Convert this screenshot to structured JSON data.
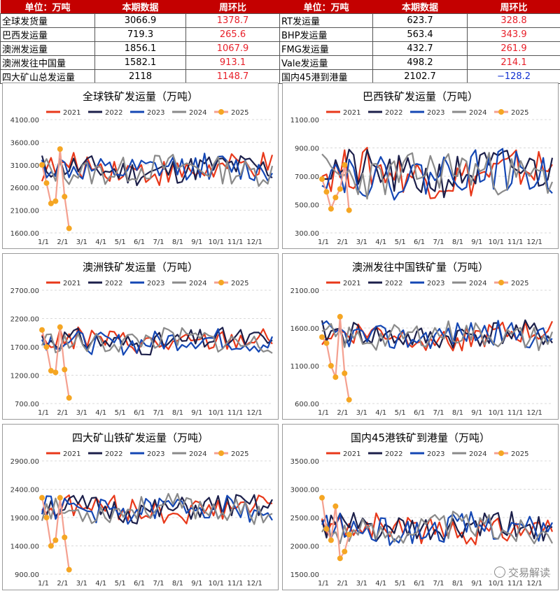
{
  "summary_table": {
    "headers": [
      "单位：万吨",
      "本期数据",
      "周环比",
      "单位：万吨",
      "本期数据",
      "周环比"
    ],
    "rows": [
      [
        {
          "label": "全球发货量",
          "value": "3066.9",
          "change": "1378.7",
          "sign": "pos"
        },
        {
          "label": "RT发运量",
          "value": "623.7",
          "change": "328.8",
          "sign": "pos"
        }
      ],
      [
        {
          "label": "巴西发运量",
          "value": "719.3",
          "change": "265.6",
          "sign": "pos"
        },
        {
          "label": "BHP发运量",
          "value": "563.4",
          "change": "343.9",
          "sign": "pos"
        }
      ],
      [
        {
          "label": "澳洲发运量",
          "value": "1856.1",
          "change": "1067.9",
          "sign": "pos"
        },
        {
          "label": "FMG发运量",
          "value": "432.7",
          "change": "261.9",
          "sign": "pos"
        }
      ],
      [
        {
          "label": "澳洲发往中国量",
          "value": "1582.1",
          "change": "913.1",
          "sign": "pos"
        },
        {
          "label": "Vale发运量",
          "value": "498.2",
          "change": "214.1",
          "sign": "pos"
        }
      ],
      [
        {
          "label": "四大矿山总发运量",
          "value": "2118",
          "change": "1148.7",
          "sign": "pos"
        },
        {
          "label": "国内45港到港量",
          "value": "2102.7",
          "change": "−128.2",
          "sign": "neg"
        }
      ]
    ]
  },
  "chart_data": [
    {
      "type": "line",
      "title": "全球铁矿发运量（万吨）",
      "ylim": [
        1600,
        4100
      ],
      "yticks": [
        "4100.00",
        "3600.00",
        "3100.00",
        "2600.00",
        "2100.00",
        "1600.00"
      ],
      "xticks": [
        "1/1",
        "2/1",
        "3/1",
        "4/1",
        "5/1",
        "6/1",
        "7/1",
        "8/1",
        "9/1",
        "10/1",
        "11/1",
        "12/1"
      ],
      "base": 3000,
      "amp": 300,
      "seed": 1
    },
    {
      "type": "line",
      "title": "巴西铁矿发运量（万吨）",
      "ylim": [
        300,
        1100
      ],
      "yticks": [
        "1100.00",
        "900.00",
        "700.00",
        "500.00",
        "300.00"
      ],
      "xticks": [
        "1/1",
        "2/1",
        "3/1",
        "4/1",
        "5/1",
        "6/1",
        "7/1",
        "8/1",
        "9/1",
        "10/1",
        "11/1",
        "12/1"
      ],
      "base": 720,
      "amp": 150,
      "seed": 2
    },
    {
      "type": "line",
      "title": "澳洲铁矿发运量（万吨）",
      "ylim": [
        700,
        2700
      ],
      "yticks": [
        "2700.00",
        "2200.00",
        "1700.00",
        "1200.00",
        "700.00"
      ],
      "xticks": [
        "1/1",
        "2/1",
        "3/1",
        "4/1",
        "5/1",
        "6/1",
        "7/1",
        "8/1",
        "9/1",
        "10/1",
        "11/1",
        "12/1"
      ],
      "base": 1800,
      "amp": 200,
      "seed": 3
    },
    {
      "type": "line",
      "title": "澳洲发往中国铁矿量（万吨）",
      "ylim": [
        600,
        2100
      ],
      "yticks": [
        "2100.00",
        "1600.00",
        "1100.00",
        "600.00"
      ],
      "xticks": [
        "1/1",
        "2/1",
        "3/1",
        "4/1",
        "5/1",
        "6/1",
        "7/1",
        "8/1",
        "9/1",
        "10/1",
        "11/1",
        "12/1"
      ],
      "base": 1500,
      "amp": 170,
      "seed": 4
    },
    {
      "type": "line",
      "title": "四大矿山铁矿发运量（万吨）",
      "ylim": [
        900,
        2900
      ],
      "yticks": [
        "2900.00",
        "2400.00",
        "1900.00",
        "1400.00",
        "900.00"
      ],
      "xticks": [
        "1/1",
        "2/1",
        "3/1",
        "4/1",
        "5/1",
        "6/1",
        "7/1",
        "8/1",
        "9/1",
        "10/1",
        "11/1",
        "12/1"
      ],
      "base": 2050,
      "amp": 220,
      "seed": 5
    },
    {
      "type": "line",
      "title": "国内45港铁矿到港量（万吨）",
      "ylim": [
        1500,
        3500
      ],
      "yticks": [
        "3500.00",
        "3000.00",
        "2500.00",
        "2000.00",
        "1500.00"
      ],
      "xticks": [
        "1/1",
        "2/1",
        "3/1",
        "4/1",
        "5/1",
        "6/1",
        "7/1",
        "8/1",
        "9/1",
        "10/1",
        "11/1",
        "12/1"
      ],
      "base": 2300,
      "amp": 250,
      "seed": 6
    }
  ],
  "series": [
    {
      "name": "2021",
      "color": "#e8381a"
    },
    {
      "name": "2022",
      "color": "#1c1f4a"
    },
    {
      "name": "2023",
      "color": "#1447b4"
    },
    {
      "name": "2024",
      "color": "#8a8a8a"
    },
    {
      "name": "2025",
      "color": "#f4a090",
      "marker": "#f5a623"
    }
  ],
  "series_2025": [
    [
      3100,
      2700,
      2250,
      2300,
      3450,
      2400,
      1700
    ],
    [
      680,
      590,
      470,
      550,
      610,
      780,
      460
    ],
    [
      2000,
      1700,
      1280,
      1250,
      2050,
      1300,
      800
    ],
    [
      1480,
      1400,
      1100,
      950,
      1750,
      1000,
      650
    ],
    [
      2250,
      1900,
      1400,
      1500,
      2250,
      1550,
      980
    ],
    [
      2850,
      2300,
      2100,
      2700,
      1780,
      1900,
      2200
    ]
  ],
  "watermark": "交易解读"
}
